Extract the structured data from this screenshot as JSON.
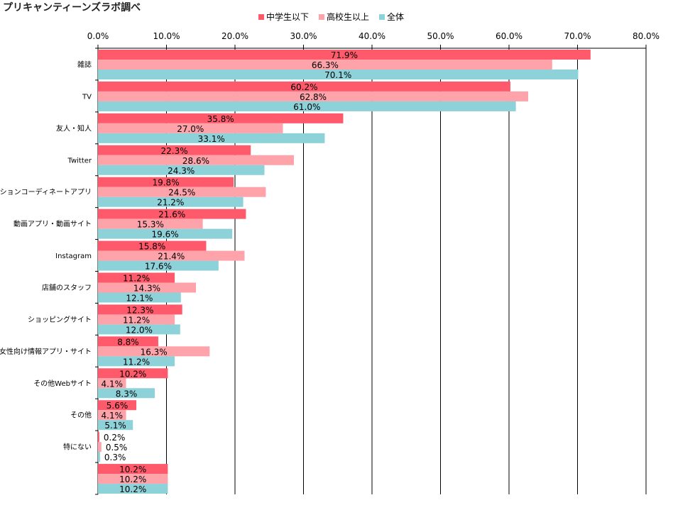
{
  "page": {
    "title": "プリキャンティーンズラボ調べ"
  },
  "colors": {
    "series": [
      "#ff5a6b",
      "#ffa3ab",
      "#8dd1d9"
    ],
    "grid": "#000000",
    "text": "#000000"
  },
  "legend": {
    "items": [
      {
        "label": "中学生以下"
      },
      {
        "label": "高校生以上"
      },
      {
        "label": "全体"
      }
    ]
  },
  "chart_data": {
    "type": "bar",
    "orientation": "horizontal",
    "title": "プリキャンティーンズラボ調べ",
    "categories": [
      "雑誌",
      "TV",
      "友人・知人",
      "Twitter",
      "ファッションコーディネートアプリ",
      "動画アプリ・動画サイト",
      "Instagram",
      "店舗のスタッフ",
      "ショッピングサイト",
      "女性向け情報アプリ・サイト",
      "その他Webサイト",
      "その他",
      "特にない",
      ""
    ],
    "series": [
      {
        "name": "中学生以下",
        "values": [
          71.9,
          60.2,
          35.8,
          22.3,
          19.8,
          21.6,
          15.8,
          11.2,
          12.3,
          8.8,
          10.2,
          5.6,
          0.2,
          10.2
        ]
      },
      {
        "name": "高校生以上",
        "values": [
          66.3,
          62.8,
          27.0,
          28.6,
          24.5,
          15.3,
          21.4,
          14.3,
          11.2,
          16.3,
          4.1,
          4.1,
          0.5,
          10.2
        ]
      },
      {
        "name": "全体",
        "values": [
          70.1,
          61.0,
          33.1,
          24.3,
          21.2,
          19.6,
          17.6,
          12.1,
          12.0,
          11.2,
          8.3,
          5.1,
          0.3,
          10.2
        ]
      }
    ],
    "xlim": [
      0,
      80
    ],
    "xticks": [
      0,
      10,
      20,
      30,
      40,
      50,
      60,
      70,
      80
    ],
    "tick_format": "0.0%",
    "value_format": "0.0%",
    "axis_position": "top",
    "legend_position": "top",
    "grid": true
  }
}
